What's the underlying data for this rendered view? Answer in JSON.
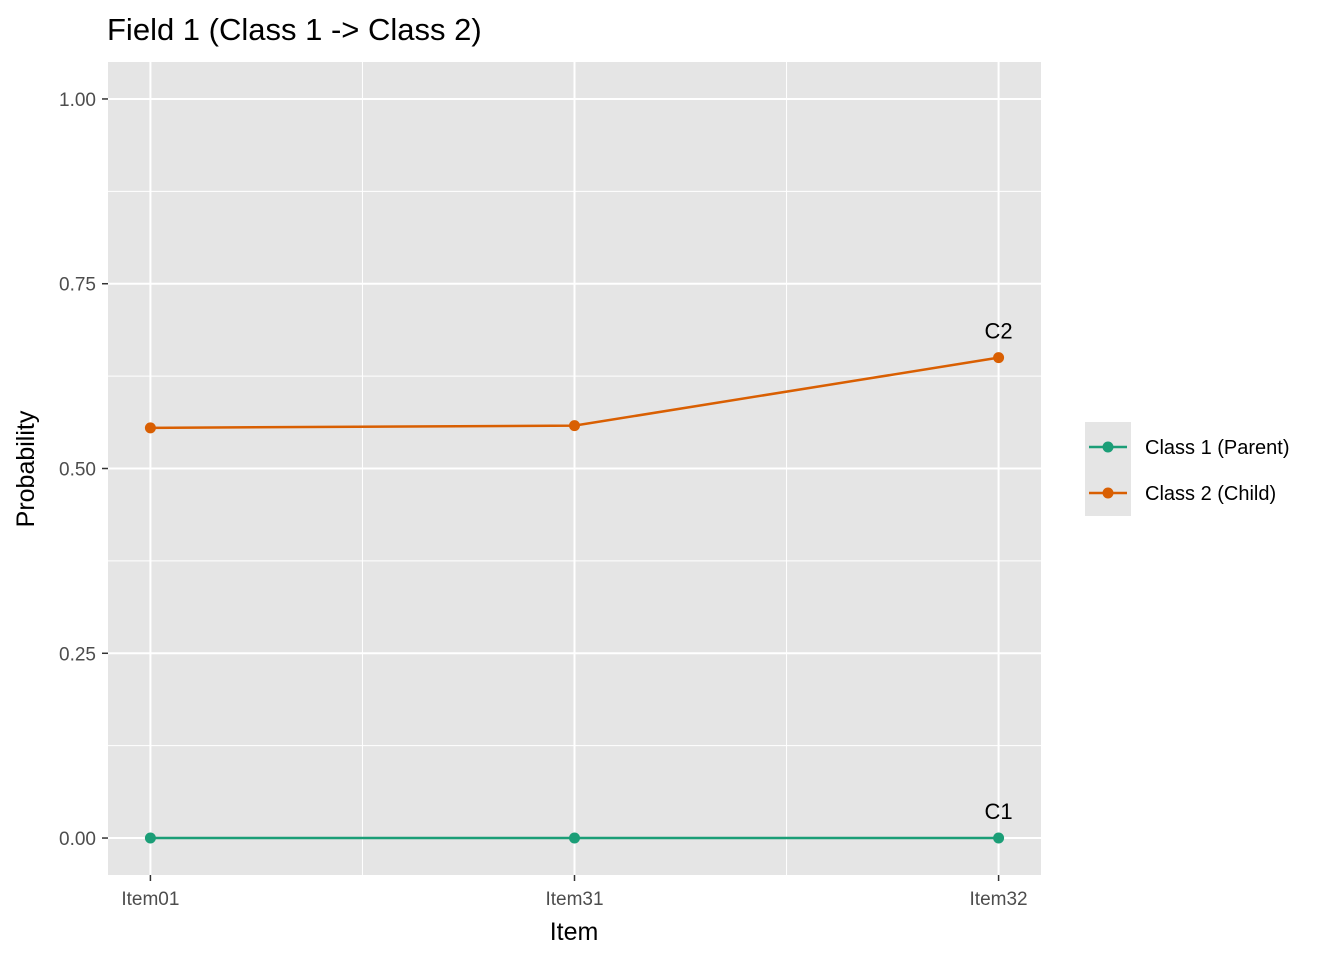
{
  "chart_data": {
    "type": "line",
    "title": "Field 1 (Class 1 -> Class 2)",
    "xlabel": "Item",
    "ylabel": "Probability",
    "categories": [
      "Item01",
      "Item31",
      "Item32"
    ],
    "ylim": [
      -0.05,
      1.05
    ],
    "yticks": [
      0.0,
      0.25,
      0.5,
      0.75,
      1.0
    ],
    "ytick_labels": [
      "0.00",
      "0.25",
      "0.50",
      "0.75",
      "1.00"
    ],
    "grid": true,
    "legend_position": "right",
    "series": [
      {
        "name": "Class 1 (Parent)",
        "color": "#1b9e77",
        "values": [
          0.0,
          0.0,
          0.0
        ],
        "end_label": "C1"
      },
      {
        "name": "Class 2 (Child)",
        "color": "#d95f02",
        "values": [
          0.555,
          0.558,
          0.65
        ],
        "end_label": "C2"
      }
    ]
  }
}
